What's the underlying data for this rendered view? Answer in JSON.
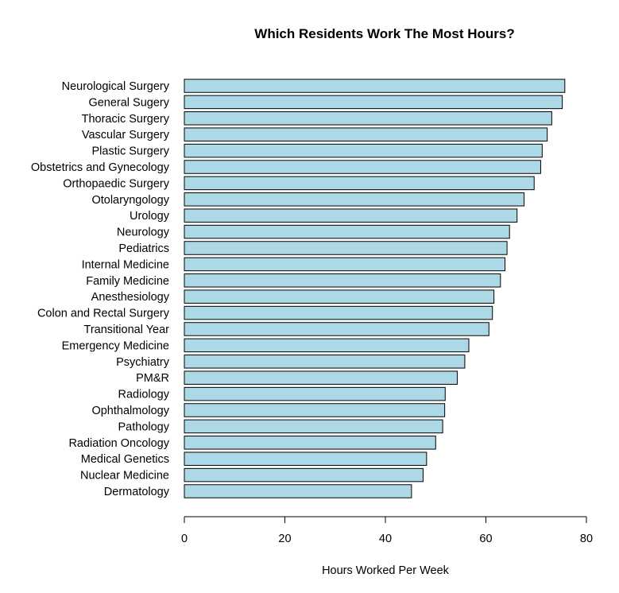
{
  "chart_data": {
    "type": "bar",
    "orientation": "horizontal",
    "title": "Which Residents Work The Most Hours?",
    "xlabel": "Hours Worked Per Week",
    "ylabel": "",
    "xlim": [
      0,
      80
    ],
    "xticks": [
      0,
      20,
      40,
      60,
      80
    ],
    "grid": false,
    "bar_color": "#add8e6",
    "categories": [
      "Neurological Surgery",
      "General Sugery",
      "Thoracic Surgery",
      "Vascular Surgery",
      "Plastic Surgery",
      "Obstetrics and Gynecology",
      "Orthopaedic Surgery",
      "Otolaryngology",
      "Urology",
      "Neurology",
      "Pediatrics",
      "Internal Medicine",
      "Family Medicine",
      "Anesthesiology",
      "Colon and Rectal Surgery",
      "Transitional Year",
      "Emergency Medicine",
      "Psychiatry",
      "PM&R",
      "Radiology",
      "Ophthalmology",
      "Pathology",
      "Radiation Oncology",
      "Medical Genetics",
      "Nuclear Medicine",
      "Dermatology"
    ],
    "values": [
      75.7,
      75.2,
      73.1,
      72.2,
      71.2,
      70.9,
      69.6,
      67.6,
      66.2,
      64.7,
      64.2,
      63.8,
      62.9,
      61.6,
      61.3,
      60.6,
      56.6,
      55.8,
      54.3,
      51.9,
      51.8,
      51.4,
      50.0,
      48.2,
      47.5,
      45.2
    ]
  }
}
